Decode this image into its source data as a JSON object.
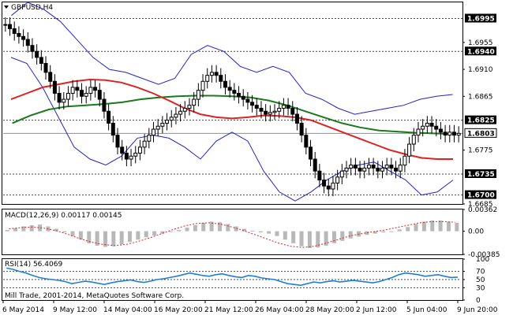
{
  "chart_data": {
    "type": "candlestick",
    "symbol_label": "GBPUSD,H4",
    "y_ticks": [
      1.6995,
      1.6955,
      1.694,
      1.691,
      1.6865,
      1.6825,
      1.6803,
      1.6775,
      1.6735,
      1.67,
      1.6685
    ],
    "ylim": [
      1.6685,
      1.7022
    ],
    "levels": [
      {
        "value": 1.6995,
        "label": "1.6995",
        "style": "dashed"
      },
      {
        "value": 1.694,
        "label": "1.6940",
        "style": "dashed"
      },
      {
        "value": 1.6825,
        "label": "1.6825",
        "style": "dashed"
      },
      {
        "value": 1.6735,
        "label": "1.6735",
        "style": "dashed"
      },
      {
        "value": 1.67,
        "label": "1.6700",
        "style": "dashed"
      }
    ],
    "current_price": {
      "value": 1.6803,
      "label": "1.6803"
    },
    "x_labels": [
      "6 May 2014",
      "9 May 12:00",
      "14 May 04:00",
      "16 May 20:00",
      "21 May 12:00",
      "26 May 04:00",
      "28 May 20:00",
      "2 Jun 12:00",
      "5 Jun 04:00",
      "9 Jun 20:00"
    ],
    "price_close": [
      1.6985,
      1.6978,
      1.697,
      1.6965,
      1.696,
      1.695,
      1.694,
      1.693,
      1.692,
      1.6905,
      1.689,
      1.687,
      1.6855,
      1.686,
      1.687,
      1.688,
      1.6875,
      1.6865,
      1.687,
      1.688,
      1.6875,
      1.686,
      1.684,
      1.682,
      1.68,
      1.678,
      1.677,
      1.676,
      1.6765,
      1.677,
      1.678,
      1.679,
      1.68,
      1.681,
      1.6815,
      1.682,
      1.6825,
      1.683,
      1.6835,
      1.684,
      1.6845,
      1.685,
      1.686,
      1.6875,
      1.689,
      1.69,
      1.6905,
      1.69,
      1.689,
      1.688,
      1.6875,
      1.687,
      1.6865,
      1.686,
      1.6855,
      1.685,
      1.6845,
      1.684,
      1.6835,
      1.6838,
      1.684,
      1.6845,
      1.685,
      1.6845,
      1.6835,
      1.682,
      1.68,
      1.678,
      1.676,
      1.674,
      1.6725,
      1.6715,
      1.671,
      1.672,
      1.673,
      1.674,
      1.6745,
      1.675,
      1.6745,
      1.674,
      1.6745,
      1.675,
      1.6745,
      1.674,
      1.6745,
      1.675,
      1.6745,
      1.674,
      1.675,
      1.6765,
      1.6785,
      1.68,
      1.681,
      1.6815,
      1.682,
      1.6815,
      1.681,
      1.6805,
      1.68,
      1.6805,
      1.68,
      1.6803
    ],
    "ma_red": [
      1.686,
      1.687,
      1.688,
      1.6885,
      1.689,
      1.6893,
      1.6892,
      1.6888,
      1.688,
      1.687,
      1.6858,
      1.6845,
      1.6835,
      1.683,
      1.6828,
      1.683,
      1.6833,
      1.6832,
      1.683,
      1.6825,
      1.6815,
      1.6805,
      1.6795,
      1.6785,
      1.6775,
      1.6768,
      1.6762,
      1.676,
      1.676
    ],
    "ma_green": [
      1.682,
      1.6833,
      1.6843,
      1.6848,
      1.685,
      1.6852,
      1.6855,
      1.686,
      1.6863,
      1.6865,
      1.6866,
      1.6866,
      1.6865,
      1.6863,
      1.6858,
      1.685,
      1.684,
      1.683,
      1.682,
      1.6813,
      1.6808,
      1.6806,
      1.6804,
      1.6803,
      1.6802
    ],
    "bb_upper": [
      1.7,
      1.7022,
      1.701,
      1.699,
      1.696,
      1.693,
      1.691,
      1.6905,
      1.6895,
      1.6885,
      1.6895,
      1.6935,
      1.695,
      1.694,
      1.6915,
      1.6905,
      1.6915,
      1.6905,
      1.687,
      1.686,
      1.6845,
      1.6835,
      1.684,
      1.6845,
      1.685,
      1.686,
      1.6865,
      1.6868
    ],
    "bb_lower": [
      1.693,
      1.692,
      1.688,
      1.683,
      1.678,
      1.676,
      1.675,
      1.6765,
      1.6795,
      1.68,
      1.6795,
      1.678,
      1.676,
      1.679,
      1.6805,
      1.679,
      1.674,
      1.6705,
      1.669,
      1.6705,
      1.6725,
      1.674,
      1.675,
      1.6755,
      1.674,
      1.6725,
      1.67,
      1.6705,
      1.6725
    ],
    "macd": {
      "label": "MACD(12,26,9) 0.00117 0.00145",
      "y_ticks": [
        0.00362,
        0.0,
        -0.00385
      ],
      "y_tick_labels": [
        "0.00362",
        "0.00",
        "-0.00385"
      ],
      "ylim": [
        -0.00385,
        0.00362
      ],
      "histogram": [
        0.0002,
        0.0005,
        0.0008,
        0.001,
        0.0011,
        0.0008,
        0.0004,
        -0.0002,
        -0.0008,
        -0.0014,
        -0.002,
        -0.0024,
        -0.0026,
        -0.0025,
        -0.0022,
        -0.0018,
        -0.0014,
        -0.001,
        -0.0007,
        -0.0004,
        -0.0001,
        0.0002,
        0.0006,
        0.001,
        0.0014,
        0.0016,
        0.0015,
        0.0012,
        0.0008,
        0.0004,
        0.0001,
        -0.0002,
        -0.0004,
        -0.0008,
        -0.0014,
        -0.002,
        -0.0025,
        -0.0028,
        -0.0027,
        -0.0024,
        -0.002,
        -0.0016,
        -0.0012,
        -0.0009,
        -0.0006,
        -0.0004,
        -0.0002,
        0.0,
        0.0003,
        0.0007,
        0.0012,
        0.0016,
        0.0018,
        0.0018,
        0.0016,
        0.0014
      ],
      "signal": [
        0.0004,
        0.0006,
        0.0007,
        0.0005,
        0.0001,
        -0.0005,
        -0.0012,
        -0.0018,
        -0.0022,
        -0.0024,
        -0.0022,
        -0.0017,
        -0.0011,
        -0.0004,
        0.0003,
        0.0009,
        0.0013,
        0.0014,
        0.0012,
        0.0007,
        0.0001,
        -0.0006,
        -0.0013,
        -0.002,
        -0.0025,
        -0.0027,
        -0.0025,
        -0.002,
        -0.0014,
        -0.0008,
        -0.0004,
        -0.0001,
        0.0002,
        0.0006,
        0.001,
        0.0014,
        0.0016,
        0.0016,
        0.0015
      ]
    },
    "rsi": {
      "label": "RSI(14) 56.4069",
      "y_ticks": [
        100,
        70,
        50,
        30,
        0
      ],
      "y_tick_labels": [
        "100",
        "70",
        "50",
        "30",
        "0"
      ],
      "ylim": [
        0,
        100
      ],
      "values": [
        78,
        75,
        70,
        66,
        60,
        55,
        52,
        50,
        48,
        45,
        40,
        43,
        46,
        44,
        41,
        38,
        42,
        45,
        47,
        49,
        45,
        43,
        46,
        50,
        52,
        55,
        58,
        62,
        66,
        63,
        60,
        58,
        62,
        64,
        60,
        57,
        55,
        60,
        58,
        54,
        52,
        50,
        45,
        40,
        38,
        36,
        40,
        44,
        42,
        45,
        47,
        44,
        46,
        48,
        46,
        44,
        42,
        45,
        50,
        55,
        62,
        66,
        64,
        62,
        58,
        60,
        62,
        58,
        55,
        56
      ]
    },
    "colors": {
      "candles": "#000000",
      "ma_red": "#dd2222",
      "ma_green": "#1a7a1a",
      "bollinger": "#2222cc",
      "macd_hist": "#b8b8b8",
      "macd_signal": "#dd2222",
      "rsi": "#1e7fd8",
      "grid": "#444444",
      "current_line": "#8090b0"
    }
  },
  "copyright": "Mill Trade, 2001-2014, MetaQuotes Software Corp."
}
